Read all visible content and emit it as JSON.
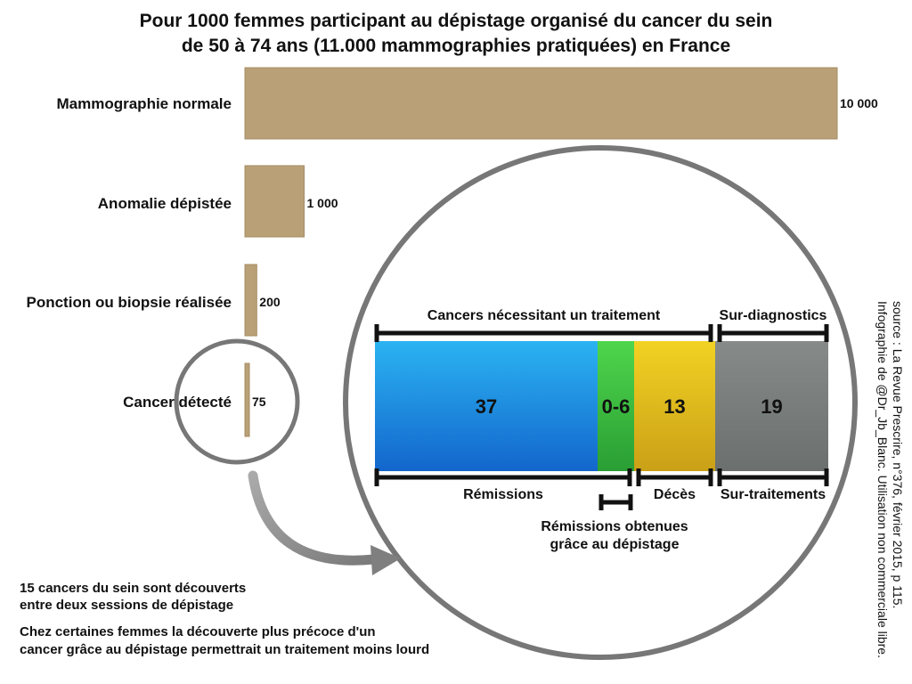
{
  "title": {
    "line1": "Pour 1000 femmes participant au dépistage organisé du cancer du sein",
    "line2": "de 50 à 74 ans (11.000 mammographies pratiquées) en France"
  },
  "colors": {
    "bar": "#b9a077",
    "remissions": "#1a8fe0",
    "remissions_depistage": "#3cc442",
    "deces": "#e8c21a",
    "sur_traitements": "#7b807e",
    "circle": "#777777"
  },
  "chart_data": [
    {
      "type": "bar",
      "orientation": "horizontal",
      "categories": [
        "Mammographie normale",
        "Anomalie dépistée",
        "Ponction ou biopsie réalisée",
        "Cancer détecté"
      ],
      "values": [
        10000,
        1000,
        200,
        75
      ],
      "value_labels": [
        "10 000",
        "1 000",
        "200",
        "75"
      ],
      "title": "Pour 1000 femmes participant au dépistage organisé du cancer du sein de 50 à 74 ans (11.000 mammographies pratiquées) en France",
      "xlim": [
        0,
        10000
      ],
      "grid": false
    },
    {
      "type": "bar",
      "orientation": "horizontal",
      "stacked": true,
      "segments": [
        {
          "label": "37",
          "value": 37,
          "color": "remissions"
        },
        {
          "label": "0-6",
          "value": 6,
          "color": "remissions_depistage"
        },
        {
          "label": "13",
          "value": 13,
          "color": "deces"
        },
        {
          "label": "19",
          "value": 19,
          "color": "sur_traitements"
        }
      ],
      "total": 75,
      "top_brackets": [
        {
          "label": "Cancers nécessitant un traitement",
          "from": 0,
          "to": 56
        },
        {
          "label": "Sur-diagnostics",
          "from": 56,
          "to": 75
        }
      ],
      "bottom_brackets": [
        {
          "label": "Rémissions",
          "from": 0,
          "to": 43
        },
        {
          "label": "Décès",
          "from": 43,
          "to": 56
        },
        {
          "label": "Sur-traitements",
          "from": 56,
          "to": 75
        }
      ],
      "sub_bracket": {
        "label_line1": "Rémissions obtenues",
        "label_line2": "grâce au dépistage",
        "from": 37,
        "to": 43
      }
    }
  ],
  "notes": {
    "note1_line1": "15 cancers du sein sont découverts",
    "note1_line2": "entre deux sessions de dépistage",
    "note2_line1": "Chez certaines femmes la découverte plus précoce d'un",
    "note2_line2": "cancer grâce au dépistage permettrait un traitement moins lourd"
  },
  "source": {
    "line1": "source : La Revue Prescrire, n°376, février 2015, p 115.",
    "line2": "Infographie de @Dr_Jb_Blanc. Utilisation non commerciale libre."
  }
}
